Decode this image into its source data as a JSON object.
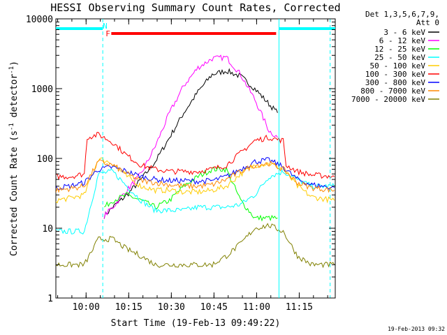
{
  "chart_data": {
    "type": "line",
    "title": "HESSI Observing Summary Count Rates, Corrected",
    "xlabel": "Start Time (19-Feb-13 09:49:22)",
    "ylabel_main": "Corrected Count Rate (s",
    "ylabel_sup1": "-1",
    "ylabel_mid": " detector",
    "ylabel_sup2": "-1",
    "ylabel_end": ")",
    "y_scale": "log",
    "ylim": [
      1,
      10000
    ],
    "xlim_minutes_since_start": [
      0,
      98.3
    ],
    "ytick_values": [
      1,
      10,
      100,
      1000,
      10000
    ],
    "ytick_labels": [
      "1",
      "10",
      "100",
      "1000",
      "10000"
    ],
    "xtick_values": [
      10.63,
      25.63,
      40.63,
      55.63,
      70.63,
      85.63
    ],
    "xtick_labels": [
      "10:00",
      "10:15",
      "10:30",
      "10:45",
      "11:00",
      "11:15"
    ],
    "legend": {
      "position": "right",
      "header_line1": "Det 1,3,5,6,7,9,",
      "header_line2": "Att 0"
    },
    "series": [
      {
        "name": "3 - 6 keV",
        "color": "#000000",
        "x": [
          17,
          20,
          25,
          30,
          35,
          40,
          45,
          50,
          55,
          60,
          65,
          70,
          75,
          78
        ],
        "y": [
          15,
          20,
          30,
          50,
          90,
          200,
          450,
          900,
          1600,
          1800,
          1500,
          1000,
          600,
          450
        ]
      },
      {
        "name": "6 - 12 keV",
        "color": "#ff00ff",
        "x": [
          17,
          20,
          25,
          30,
          35,
          40,
          45,
          50,
          55,
          60,
          65,
          70,
          75,
          78
        ],
        "y": [
          15,
          20,
          35,
          60,
          150,
          450,
          1100,
          2000,
          2700,
          2800,
          1600,
          700,
          250,
          200
        ]
      },
      {
        "name": "12 - 25 keV",
        "color": "#00ff00",
        "x": [
          17,
          20,
          25,
          30,
          35,
          40,
          45,
          50,
          55,
          60,
          65,
          70,
          75,
          78
        ],
        "y": [
          20,
          25,
          30,
          25,
          20,
          25,
          40,
          55,
          70,
          70,
          25,
          14,
          14,
          14
        ]
      },
      {
        "name": "25 - 50 keV",
        "color": "#00ffff",
        "x": [
          0,
          5,
          10,
          15,
          20,
          25,
          30,
          35,
          40,
          45,
          50,
          55,
          60,
          65,
          70,
          75,
          80,
          85,
          90,
          98
        ],
        "y": [
          9,
          9,
          9,
          60,
          65,
          40,
          25,
          18,
          18,
          18,
          20,
          20,
          20,
          22,
          30,
          55,
          65,
          50,
          40,
          40
        ]
      },
      {
        "name": "50 - 100 keV",
        "color": "#ffcc00",
        "x": [
          0,
          5,
          10,
          15,
          20,
          25,
          30,
          35,
          40,
          45,
          50,
          55,
          60,
          65,
          70,
          75,
          80,
          85,
          90,
          98
        ],
        "y": [
          25,
          27,
          30,
          100,
          85,
          55,
          40,
          35,
          35,
          33,
          33,
          35,
          40,
          60,
          80,
          85,
          70,
          40,
          28,
          25
        ]
      },
      {
        "name": "100 - 300 keV",
        "color": "#ff0000",
        "x": [
          0,
          5,
          10,
          11,
          15,
          20,
          25,
          30,
          35,
          40,
          45,
          50,
          55,
          60,
          65,
          70,
          75,
          80,
          81,
          85,
          90,
          98
        ],
        "y": [
          55,
          55,
          60,
          200,
          220,
          170,
          110,
          80,
          70,
          65,
          65,
          65,
          70,
          80,
          120,
          180,
          200,
          180,
          80,
          65,
          58,
          55
        ]
      },
      {
        "name": "300 - 800 keV",
        "color": "#0000ff",
        "x": [
          0,
          5,
          10,
          15,
          20,
          25,
          30,
          35,
          40,
          45,
          50,
          55,
          60,
          65,
          70,
          75,
          80,
          85,
          90,
          98
        ],
        "y": [
          38,
          40,
          45,
          70,
          75,
          65,
          55,
          50,
          48,
          48,
          47,
          48,
          55,
          70,
          90,
          95,
          75,
          50,
          42,
          38
        ]
      },
      {
        "name": "800 - 7000 keV",
        "color": "#ff8800",
        "x": [
          0,
          5,
          10,
          15,
          20,
          25,
          30,
          35,
          40,
          45,
          50,
          55,
          60,
          65,
          70,
          75,
          80,
          85,
          90,
          98
        ],
        "y": [
          35,
          37,
          40,
          90,
          80,
          60,
          48,
          45,
          42,
          40,
          40,
          42,
          50,
          65,
          80,
          85,
          70,
          45,
          38,
          35
        ]
      },
      {
        "name": "7000 - 20000 keV",
        "color": "#808000",
        "x": [
          0,
          5,
          10,
          15,
          20,
          25,
          30,
          35,
          40,
          45,
          50,
          55,
          60,
          65,
          70,
          75,
          80,
          85,
          90,
          98
        ],
        "y": [
          3,
          3,
          3,
          7,
          7,
          5,
          4,
          3,
          3,
          3,
          3,
          3,
          4,
          6,
          10,
          11,
          9,
          4,
          3,
          3
        ]
      }
    ],
    "flag_markers": [
      {
        "label": "N",
        "color": "#00ffff",
        "x": 16.5
      },
      {
        "label": "F",
        "color": "#ff0000",
        "x": 17.5
      }
    ],
    "flag_bars": [
      {
        "flag": "N",
        "color": "#00ffff",
        "segments": [
          [
            0,
            16.5
          ],
          [
            78.5,
            98.3
          ]
        ]
      },
      {
        "flag": "F",
        "color": "#ff0000",
        "segments": [
          [
            19.5,
            77.5
          ]
        ]
      }
    ],
    "vertical_markers": [
      {
        "color": "#00ffff",
        "x": 16.5,
        "style": "dashed"
      },
      {
        "color": "#00ffff",
        "x": 78.5,
        "style": "solid"
      },
      {
        "color": "#00ffff",
        "x": 96.5,
        "style": "dashed"
      }
    ]
  },
  "footer": {
    "timestamp": "19-Feb-2013 09:32"
  }
}
